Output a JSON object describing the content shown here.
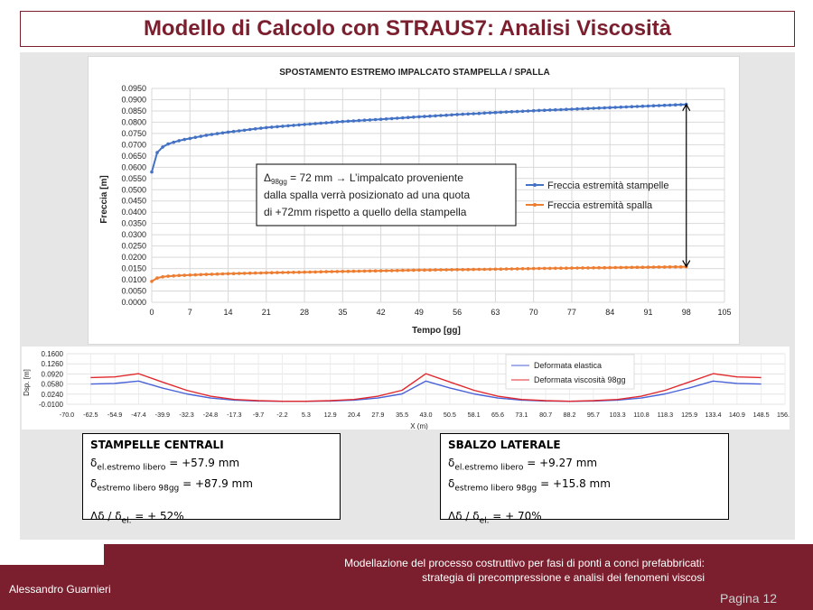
{
  "slide": {
    "title": "Modello di Calcolo con STRAUS7: Analisi Viscosità",
    "author": "Alessandro Guarnieri",
    "footer_desc": "Modellazione del processo costruttivo per fasi di ponti a conci prefabbricati: strategia di precompressione e analisi dei fenomeni viscosi",
    "page": "Pagina 12"
  },
  "colors": {
    "accent": "#7b1f2e",
    "series_blue": "#4472c4",
    "series_orange": "#ed7d31",
    "defo_blue": "#4a62d8",
    "defo_red": "#e0292e"
  },
  "chart_data": [
    {
      "type": "line",
      "title": "SPOSTAMENTO ESTREMO IMPALCATO STAMPELLA / SPALLA",
      "xlabel": "Tempo [gg]",
      "ylabel": "Freccia [m]",
      "xlim": [
        0,
        105
      ],
      "ylim": [
        0,
        0.095
      ],
      "xticks": [
        "0",
        "7",
        "14",
        "21",
        "28",
        "35",
        "42",
        "49",
        "56",
        "63",
        "70",
        "77",
        "84",
        "91",
        "98",
        "105"
      ],
      "yticks": [
        "0.0000",
        "0.0050",
        "0.0100",
        "0.0150",
        "0.0200",
        "0.0250",
        "0.0300",
        "0.0350",
        "0.0400",
        "0.0450",
        "0.0500",
        "0.0550",
        "0.0600",
        "0.0650",
        "0.0700",
        "0.0750",
        "0.0800",
        "0.0850",
        "0.0900",
        "0.0950"
      ],
      "grid": true,
      "legend_position": "right",
      "series": [
        {
          "name": "Freccia estremità stampelle",
          "color": "#4472c4",
          "x": [
            0,
            1,
            2,
            3,
            5,
            7,
            10,
            14,
            21,
            28,
            35,
            42,
            49,
            56,
            63,
            70,
            77,
            84,
            91,
            98
          ],
          "y": [
            0.0579,
            0.0665,
            0.069,
            0.0703,
            0.0718,
            0.0728,
            0.0742,
            0.0756,
            0.0776,
            0.079,
            0.0803,
            0.0813,
            0.0824,
            0.0834,
            0.0843,
            0.0851,
            0.0858,
            0.0865,
            0.0872,
            0.0879
          ]
        },
        {
          "name": "Freccia estremità spalla",
          "color": "#ed7d31",
          "x": [
            0,
            1,
            2,
            3,
            5,
            7,
            10,
            14,
            21,
            28,
            35,
            42,
            49,
            56,
            63,
            70,
            77,
            84,
            91,
            98
          ],
          "y": [
            0.0093,
            0.0108,
            0.0113,
            0.0116,
            0.0119,
            0.0121,
            0.0124,
            0.0127,
            0.0131,
            0.0134,
            0.0137,
            0.014,
            0.0143,
            0.0145,
            0.0147,
            0.015,
            0.0152,
            0.0154,
            0.0156,
            0.0158
          ]
        }
      ],
      "annotation": {
        "delta_label": "Δ",
        "delta_sub": "98gg",
        "rest_line1": " = 72 mm → L’impalcato proveniente",
        "line2": "dalla spalla verrà posizionato ad una quota",
        "line3": "di +72mm rispetto a quello della stampella"
      }
    },
    {
      "type": "line",
      "xlabel": "X (m)",
      "ylabel": "Dsp. [m]",
      "xlim": [
        -70.0,
        156.0
      ],
      "ylim": [
        -0.01,
        0.16
      ],
      "yticks": [
        "0.1600",
        "0.1260",
        "0.0920",
        "0.0580",
        "0.0240",
        "-0.0100"
      ],
      "xticks": [
        "-70.0",
        "-62.5",
        "-54.9",
        "-47.4",
        "-39.9",
        "-32.3",
        "-24.8",
        "-17.3",
        "-9.7",
        "-2.2",
        "5.3",
        "12.9",
        "20.4",
        "27.9",
        "35.5",
        "43.0",
        "50.5",
        "58.1",
        "65.6",
        "73.1",
        "80.7",
        "88.2",
        "95.7",
        "103.3",
        "110.8",
        "118.3",
        "125.9",
        "133.4",
        "140.9",
        "148.5",
        "156.0"
      ],
      "legend_position": "top-right",
      "series": [
        {
          "name": "Deformata elastica",
          "color": "#4a62d8",
          "x": [
            -62.5,
            -55,
            -47.4,
            -40,
            -32.3,
            -24.8,
            -17.3,
            -9.7,
            -2.2,
            5.3,
            12.9,
            20.4,
            27.9,
            35.5,
            43.0,
            50.5,
            58.1,
            65.6,
            73.1,
            80.7,
            88.2,
            95.7,
            103.3,
            110.8,
            118.3,
            125.9,
            133.4,
            140.9,
            148.5
          ],
          "y": [
            0.058,
            0.06,
            0.068,
            0.045,
            0.025,
            0.011,
            0.004,
            0.001,
            0.0,
            0.0,
            0.001,
            0.004,
            0.011,
            0.025,
            0.068,
            0.045,
            0.025,
            0.011,
            0.004,
            0.001,
            0.0,
            0.001,
            0.004,
            0.011,
            0.025,
            0.045,
            0.068,
            0.06,
            0.058
          ]
        },
        {
          "name": "Deformata viscosità 98gg",
          "color": "#e0292e",
          "x": [
            -62.5,
            -55,
            -47.4,
            -40,
            -32.3,
            -24.8,
            -17.3,
            -9.7,
            -2.2,
            5.3,
            12.9,
            20.4,
            27.9,
            35.5,
            43.0,
            50.5,
            58.1,
            65.6,
            73.1,
            80.7,
            88.2,
            95.7,
            103.3,
            110.8,
            118.3,
            125.9,
            133.4,
            140.9,
            148.5
          ],
          "y": [
            0.08,
            0.082,
            0.093,
            0.065,
            0.037,
            0.017,
            0.006,
            0.002,
            0.0,
            0.0,
            0.002,
            0.006,
            0.017,
            0.037,
            0.093,
            0.065,
            0.037,
            0.017,
            0.006,
            0.002,
            0.0,
            0.002,
            0.006,
            0.017,
            0.037,
            0.065,
            0.093,
            0.082,
            0.08
          ]
        }
      ]
    }
  ],
  "box_left": {
    "heading": "STAMPELLE CENTRALI",
    "l1_sym": "δ",
    "l1_sub": "el.estremo libero",
    "l1_val": " = +57.9 mm",
    "l2_sym": "δ",
    "l2_sub": "estremo libero 98gg",
    "l2_val": " = +87.9 mm",
    "l3_a": "Δδ / δ",
    "l3_sub": "el.",
    "l3_b": " = + 52%"
  },
  "box_right": {
    "heading": "SBALZO LATERALE",
    "l1_sym": "δ",
    "l1_sub": "el.estremo libero",
    "l1_val": " = +9.27 mm",
    "l2_sym": "δ",
    "l2_sub": "estremo libero 98gg",
    "l2_val": " = +15.8 mm",
    "l3_a": "Δδ / δ",
    "l3_sub": "el.",
    "l3_b": " = + 70%"
  }
}
